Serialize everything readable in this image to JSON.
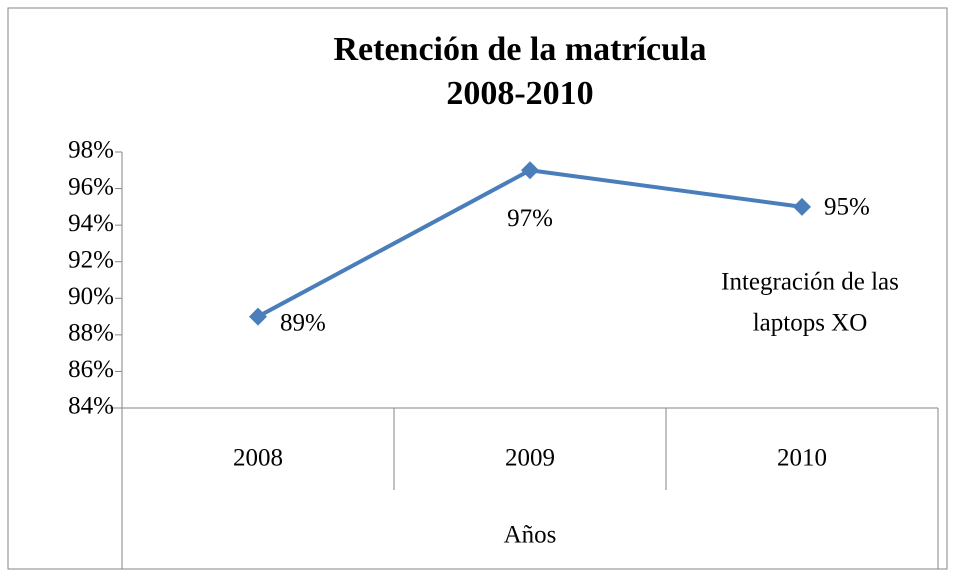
{
  "chart_data": {
    "type": "line",
    "title": [
      "Retención de la matrícula",
      "2008-2010"
    ],
    "categories": [
      "2008",
      "2009",
      "2010"
    ],
    "series": [
      {
        "name": null,
        "color": "#4a7ebb",
        "values": [
          89,
          97,
          95
        ],
        "value_labels": [
          "89%",
          "97%",
          "95%"
        ]
      }
    ],
    "ylim": [
      84,
      98
    ],
    "yticks": [
      {
        "value": 84,
        "label": "84%"
      },
      {
        "value": 86,
        "label": "86%"
      },
      {
        "value": 88,
        "label": "88%"
      },
      {
        "value": 90,
        "label": "90%"
      },
      {
        "value": 92,
        "label": "92%"
      },
      {
        "value": 94,
        "label": "94%"
      },
      {
        "value": 96,
        "label": "96%"
      },
      {
        "value": 98,
        "label": "98%"
      }
    ],
    "xlabel": "Años",
    "annotation": [
      "Integración de las",
      "laptops XO"
    ],
    "grid": false
  }
}
